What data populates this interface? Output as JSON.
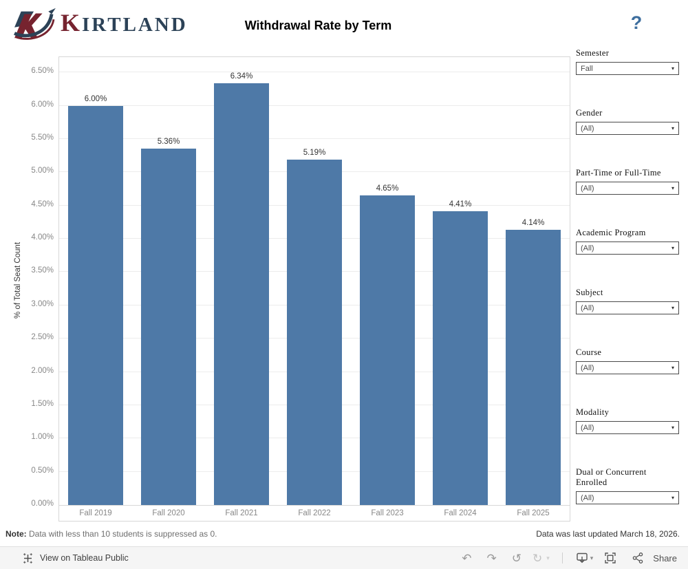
{
  "header": {
    "brand_first_letter": "K",
    "brand_rest": "IRTLAND",
    "title": "Withdrawal Rate by Term",
    "help_label": "?"
  },
  "chart_data": {
    "type": "bar",
    "title": "Withdrawal Rate by Term",
    "categories": [
      "Fall 2019",
      "Fall 2020",
      "Fall 2021",
      "Fall 2022",
      "Fall 2023",
      "Fall 2024",
      "Fall 2025"
    ],
    "values": [
      6.0,
      5.36,
      6.34,
      5.19,
      4.65,
      4.41,
      4.14
    ],
    "data_labels": [
      "6.00%",
      "5.36%",
      "6.34%",
      "5.19%",
      "4.65%",
      "4.41%",
      "4.14%"
    ],
    "xlabel": "",
    "ylabel": "% of Total Seat Count",
    "ylim": [
      0,
      6.73
    ],
    "ytick_step": 0.5,
    "ytick_labels": [
      "0.00%",
      "0.50%",
      "1.00%",
      "1.50%",
      "2.00%",
      "2.50%",
      "3.00%",
      "3.50%",
      "4.00%",
      "4.50%",
      "5.00%",
      "5.50%",
      "6.00%",
      "6.50%"
    ],
    "grid": true,
    "legend": "none",
    "bar_color": "#4e79a7"
  },
  "filters": [
    {
      "label": "Semester",
      "value": "Fall"
    },
    {
      "label": "Gender",
      "value": "(All)"
    },
    {
      "label": "Part-Time or Full-Time",
      "value": "(All)"
    },
    {
      "label": "Academic Program",
      "value": "(All)"
    },
    {
      "label": "Subject",
      "value": "(All)"
    },
    {
      "label": "Course",
      "value": "(All)"
    },
    {
      "label": "Modality",
      "value": "(All)"
    },
    {
      "label": "Dual or Concurrent Enrolled",
      "value": "(All)"
    }
  ],
  "footer": {
    "note_prefix": "Note:",
    "note_text": " Data with less than 10 students is suppressed as 0.",
    "updated_text": "Data was last updated March 18, 2026."
  },
  "toolbar": {
    "view_link": "View on Tableau Public",
    "share_label": "Share"
  },
  "colors": {
    "bar": "#4e79a7",
    "help_accent": "#3d6e9e",
    "brand_navy": "#2c4257",
    "brand_maroon": "#76232f"
  }
}
